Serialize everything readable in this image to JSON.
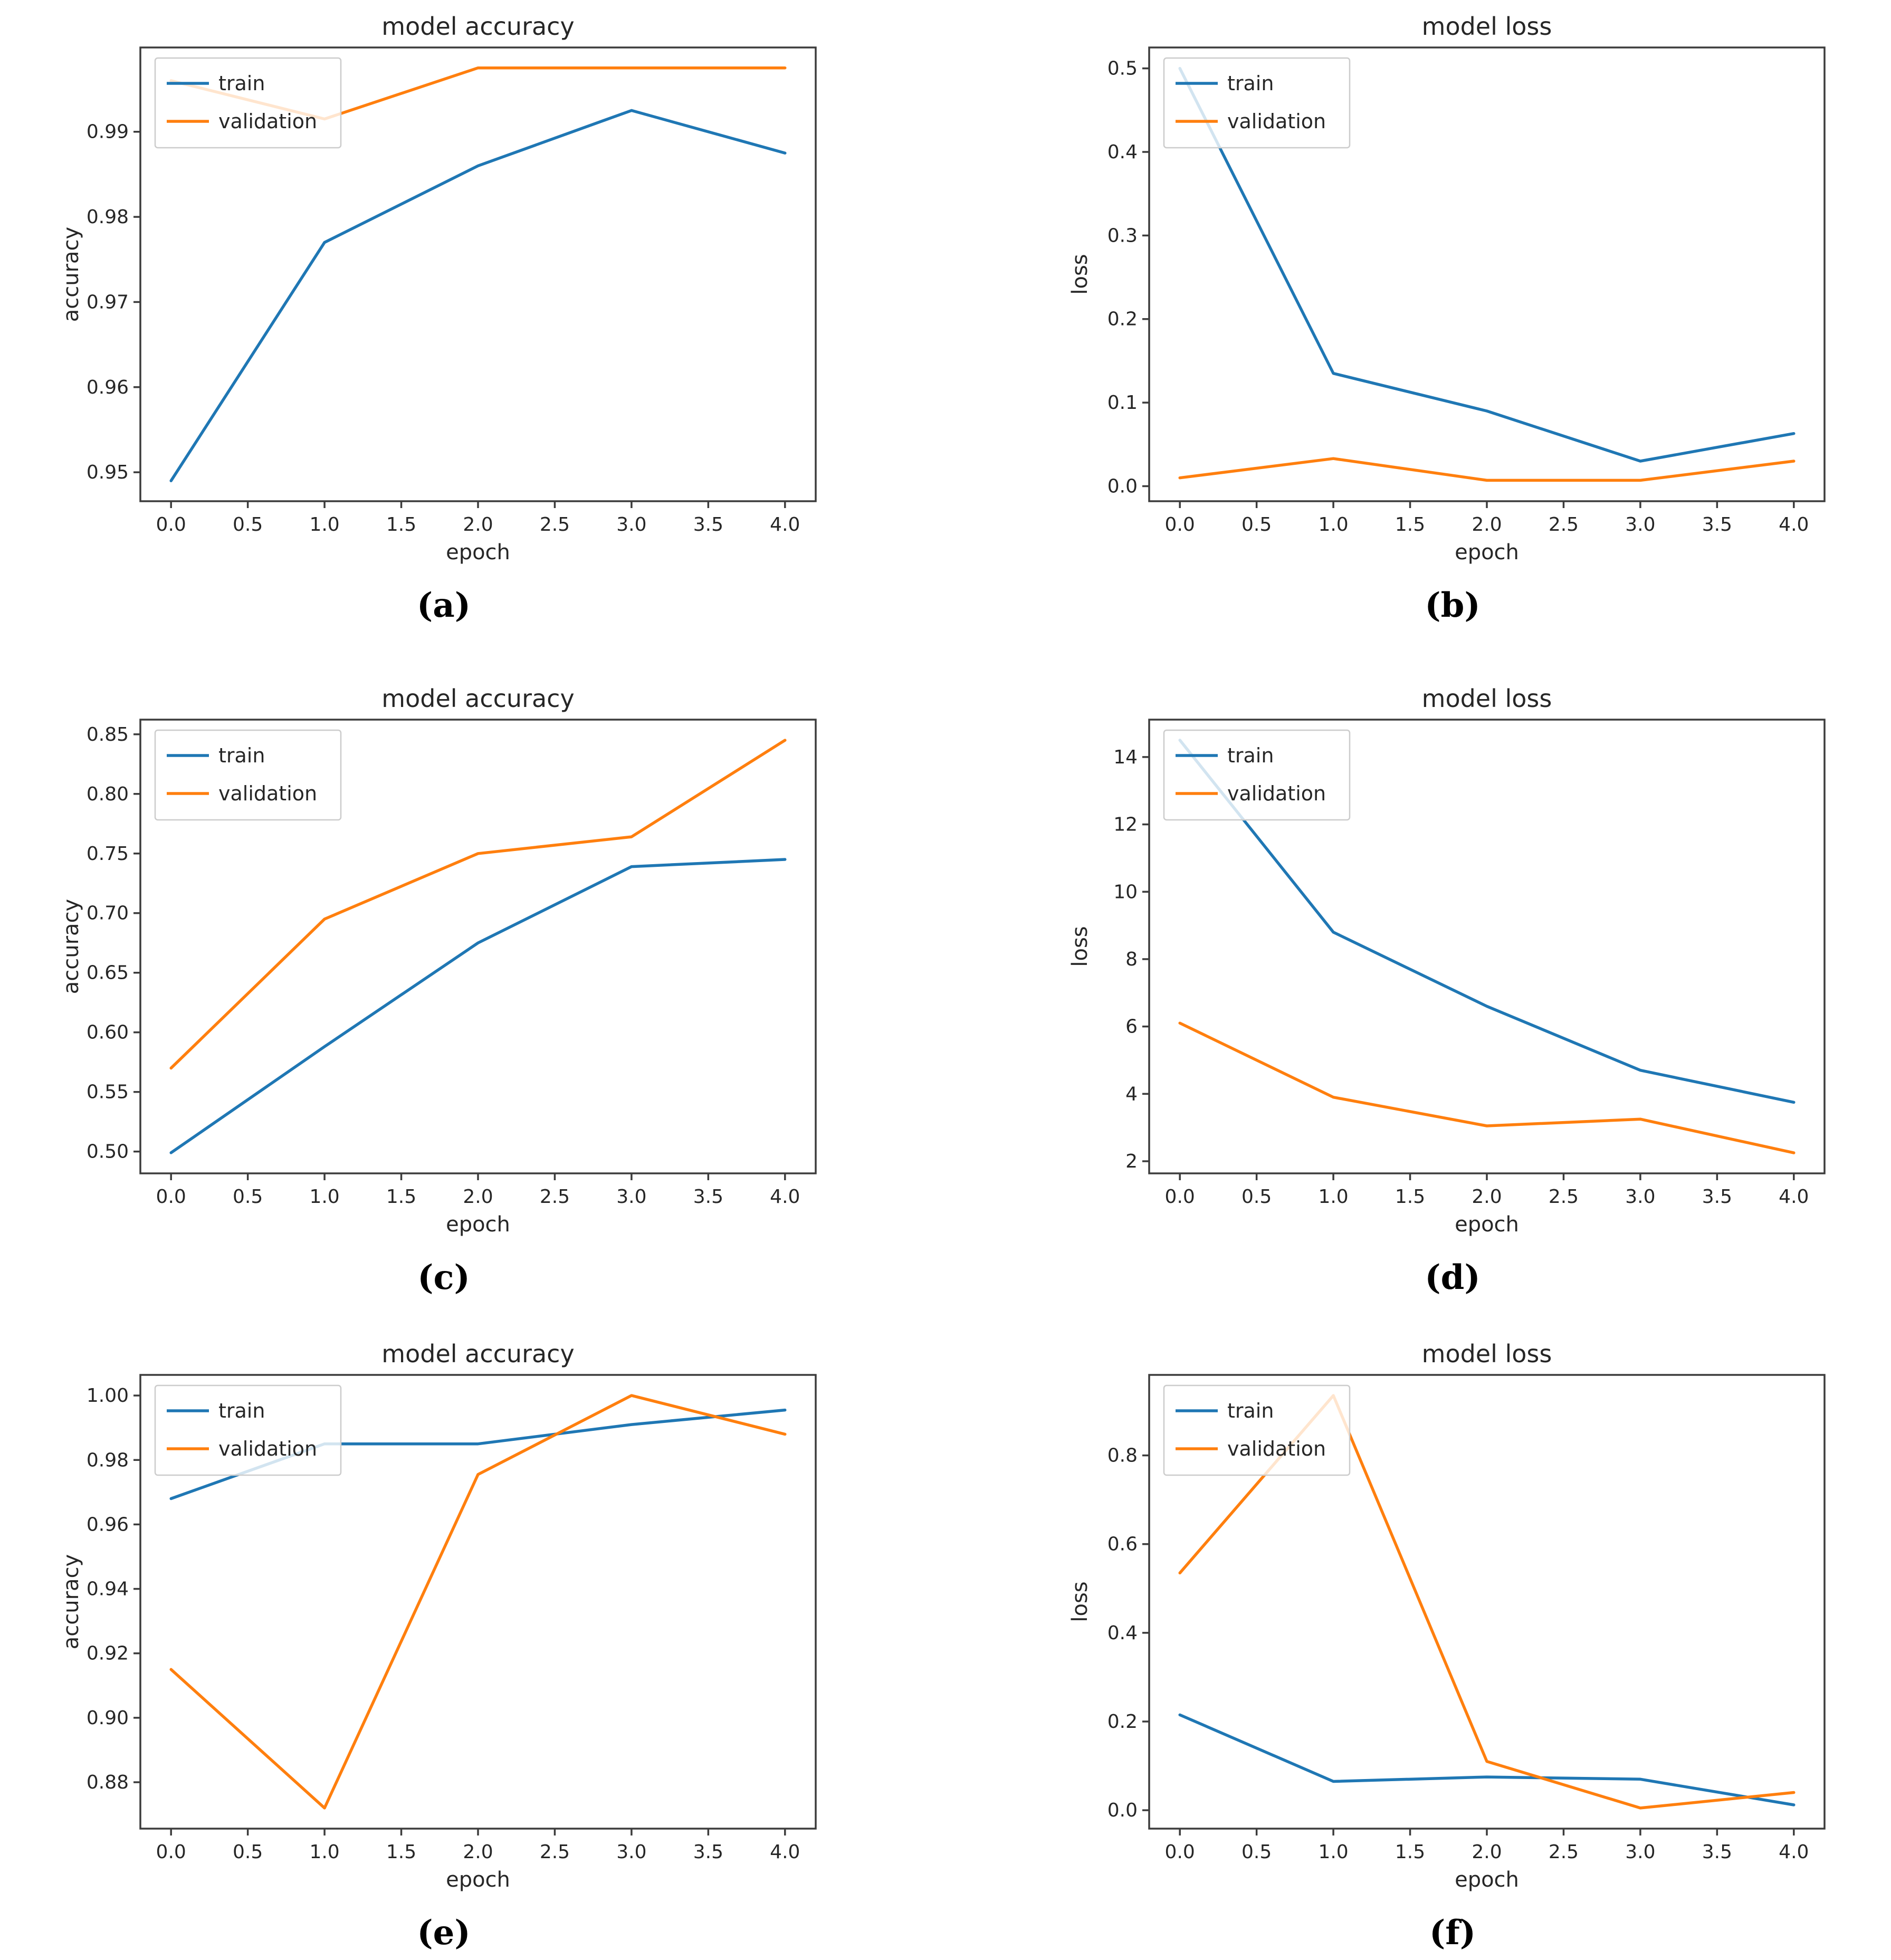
{
  "figure": {
    "background": "#ffffff",
    "layout": "3 rows x 2 columns of line charts",
    "captions": [
      "(a)",
      "(b)",
      "(c)",
      "(d)",
      "(e)",
      "(f)"
    ]
  },
  "colors": {
    "train": "#1f77b4",
    "validation": "#ff7f0e",
    "spine": "#3c3c3c",
    "text": "#262626",
    "legend_border": "#cccccc",
    "legend_fill": "#ffffff"
  },
  "chart_data": [
    {
      "id": "a",
      "caption": "(a)",
      "type": "line",
      "title": "model accuracy",
      "xlabel": "epoch",
      "ylabel": "accuracy",
      "grid": false,
      "legend": [
        "train",
        "validation"
      ],
      "legend_position": "upper-left",
      "x": [
        0,
        1,
        2,
        3,
        4
      ],
      "xlim": [
        -0.2,
        4.2
      ],
      "ylim": [
        0.9466,
        0.9999
      ],
      "xticks": [
        0,
        0.5,
        1,
        1.5,
        2,
        2.5,
        3,
        3.5,
        4
      ],
      "xtick_labels": [
        "0.0",
        "0.5",
        "1.0",
        "1.5",
        "2.0",
        "2.5",
        "3.0",
        "3.5",
        "4.0"
      ],
      "yticks": [
        0.95,
        0.96,
        0.97,
        0.98,
        0.99
      ],
      "ytick_labels": [
        "0.95",
        "0.96",
        "0.97",
        "0.98",
        "0.99"
      ],
      "series": [
        {
          "name": "train",
          "color": "#1f77b4",
          "values": [
            0.949,
            0.977,
            0.986,
            0.9925,
            0.9875
          ]
        },
        {
          "name": "validation",
          "color": "#ff7f0e",
          "values": [
            0.996,
            0.9915,
            0.9975,
            0.9975,
            0.9975
          ]
        }
      ]
    },
    {
      "id": "b",
      "caption": "(b)",
      "type": "line",
      "title": "model loss",
      "xlabel": "epoch",
      "ylabel": "loss",
      "grid": false,
      "legend": [
        "train",
        "validation"
      ],
      "legend_position": "upper-left",
      "x": [
        0,
        1,
        2,
        3,
        4
      ],
      "xlim": [
        -0.2,
        4.2
      ],
      "ylim": [
        -0.018,
        0.525
      ],
      "xticks": [
        0,
        0.5,
        1,
        1.5,
        2,
        2.5,
        3,
        3.5,
        4
      ],
      "xtick_labels": [
        "0.0",
        "0.5",
        "1.0",
        "1.5",
        "2.0",
        "2.5",
        "3.0",
        "3.5",
        "4.0"
      ],
      "yticks": [
        0.0,
        0.1,
        0.2,
        0.3,
        0.4,
        0.5
      ],
      "ytick_labels": [
        "0.0",
        "0.1",
        "0.2",
        "0.3",
        "0.4",
        "0.5"
      ],
      "series": [
        {
          "name": "train",
          "color": "#1f77b4",
          "values": [
            0.5,
            0.135,
            0.09,
            0.03,
            0.063
          ]
        },
        {
          "name": "validation",
          "color": "#ff7f0e",
          "values": [
            0.01,
            0.033,
            0.007,
            0.007,
            0.03
          ]
        }
      ]
    },
    {
      "id": "c",
      "caption": "(c)",
      "type": "line",
      "title": "model accuracy",
      "xlabel": "epoch",
      "ylabel": "accuracy",
      "grid": false,
      "legend": [
        "train",
        "validation"
      ],
      "legend_position": "upper-left",
      "x": [
        0,
        1,
        2,
        3,
        4
      ],
      "xlim": [
        -0.2,
        4.2
      ],
      "ylim": [
        0.4817,
        0.8623
      ],
      "xticks": [
        0,
        0.5,
        1,
        1.5,
        2,
        2.5,
        3,
        3.5,
        4
      ],
      "xtick_labels": [
        "0.0",
        "0.5",
        "1.0",
        "1.5",
        "2.0",
        "2.5",
        "3.0",
        "3.5",
        "4.0"
      ],
      "yticks": [
        0.5,
        0.55,
        0.6,
        0.65,
        0.7,
        0.75,
        0.8,
        0.85
      ],
      "ytick_labels": [
        "0.50",
        "0.55",
        "0.60",
        "0.65",
        "0.70",
        "0.75",
        "0.80",
        "0.85"
      ],
      "series": [
        {
          "name": "train",
          "color": "#1f77b4",
          "values": [
            0.499,
            0.588,
            0.675,
            0.739,
            0.745
          ]
        },
        {
          "name": "validation",
          "color": "#ff7f0e",
          "values": [
            0.57,
            0.695,
            0.75,
            0.764,
            0.845
          ]
        }
      ]
    },
    {
      "id": "d",
      "caption": "(d)",
      "type": "line",
      "title": "model loss",
      "xlabel": "epoch",
      "ylabel": "loss",
      "grid": false,
      "legend": [
        "train",
        "validation"
      ],
      "legend_position": "upper-left",
      "x": [
        0,
        1,
        2,
        3,
        4
      ],
      "xlim": [
        -0.2,
        4.2
      ],
      "ylim": [
        1.64,
        15.11
      ],
      "xticks": [
        0,
        0.5,
        1,
        1.5,
        2,
        2.5,
        3,
        3.5,
        4
      ],
      "xtick_labels": [
        "0.0",
        "0.5",
        "1.0",
        "1.5",
        "2.0",
        "2.5",
        "3.0",
        "3.5",
        "4.0"
      ],
      "yticks": [
        2,
        4,
        6,
        8,
        10,
        12,
        14
      ],
      "ytick_labels": [
        "2",
        "4",
        "6",
        "8",
        "10",
        "12",
        "14"
      ],
      "series": [
        {
          "name": "train",
          "color": "#1f77b4",
          "values": [
            14.5,
            8.8,
            6.6,
            4.7,
            3.75
          ]
        },
        {
          "name": "validation",
          "color": "#ff7f0e",
          "values": [
            6.1,
            3.9,
            3.05,
            3.25,
            2.25
          ]
        }
      ]
    },
    {
      "id": "e",
      "caption": "(e)",
      "type": "line",
      "title": "model accuracy",
      "xlabel": "epoch",
      "ylabel": "accuracy",
      "grid": false,
      "legend": [
        "train",
        "validation"
      ],
      "legend_position": "upper-left",
      "x": [
        0,
        1,
        2,
        3,
        4
      ],
      "xlim": [
        -0.2,
        4.2
      ],
      "ylim": [
        0.8656,
        1.0064
      ],
      "xticks": [
        0,
        0.5,
        1,
        1.5,
        2,
        2.5,
        3,
        3.5,
        4
      ],
      "xtick_labels": [
        "0.0",
        "0.5",
        "1.0",
        "1.5",
        "2.0",
        "2.5",
        "3.0",
        "3.5",
        "4.0"
      ],
      "yticks": [
        0.88,
        0.9,
        0.92,
        0.94,
        0.96,
        0.98,
        1.0
      ],
      "ytick_labels": [
        "0.88",
        "0.90",
        "0.92",
        "0.94",
        "0.96",
        "0.98",
        "1.00"
      ],
      "series": [
        {
          "name": "train",
          "color": "#1f77b4",
          "values": [
            0.968,
            0.985,
            0.985,
            0.991,
            0.9955
          ]
        },
        {
          "name": "validation",
          "color": "#ff7f0e",
          "values": [
            0.915,
            0.872,
            0.9755,
            1.0,
            0.988
          ]
        }
      ]
    },
    {
      "id": "f",
      "caption": "(f)",
      "type": "line",
      "title": "model loss",
      "xlabel": "epoch",
      "ylabel": "loss",
      "grid": false,
      "legend": [
        "train",
        "validation"
      ],
      "legend_position": "upper-left",
      "x": [
        0,
        1,
        2,
        3,
        4
      ],
      "xlim": [
        -0.2,
        4.2
      ],
      "ylim": [
        -0.0415,
        0.9815
      ],
      "xticks": [
        0,
        0.5,
        1,
        1.5,
        2,
        2.5,
        3,
        3.5,
        4
      ],
      "xtick_labels": [
        "0.0",
        "0.5",
        "1.0",
        "1.5",
        "2.0",
        "2.5",
        "3.0",
        "3.5",
        "4.0"
      ],
      "yticks": [
        0.0,
        0.2,
        0.4,
        0.6,
        0.8
      ],
      "ytick_labels": [
        "0.0",
        "0.2",
        "0.4",
        "0.6",
        "0.8"
      ],
      "series": [
        {
          "name": "train",
          "color": "#1f77b4",
          "values": [
            0.215,
            0.065,
            0.075,
            0.07,
            0.012
          ]
        },
        {
          "name": "validation",
          "color": "#ff7f0e",
          "values": [
            0.535,
            0.935,
            0.11,
            0.005,
            0.04
          ]
        }
      ]
    }
  ]
}
